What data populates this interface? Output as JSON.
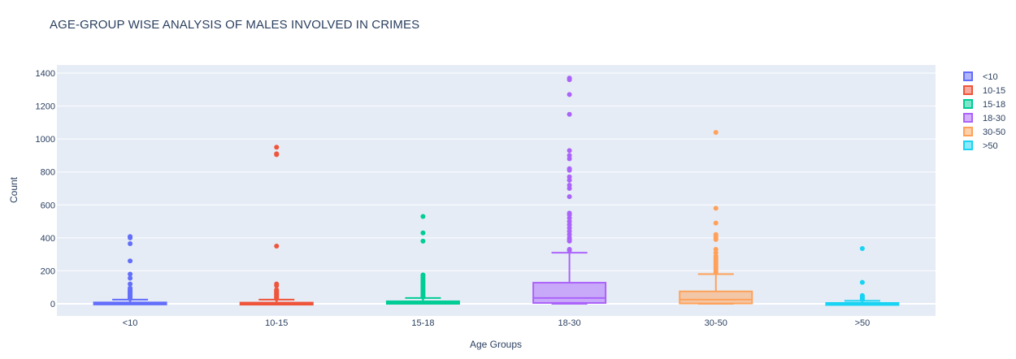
{
  "chart_data": {
    "type": "box",
    "title": "AGE-GROUP WISE ANALYSIS OF MALES INVOLVED IN CRIMES",
    "xlabel": "Age Groups",
    "ylabel": "Count",
    "ylim": [
      -70,
      1470
    ],
    "yticks": [
      0,
      200,
      400,
      600,
      800,
      1000,
      1200,
      1400
    ],
    "grid": true,
    "legend_position": "right",
    "series": [
      {
        "name": "<10",
        "color": "#636efa",
        "q1": 0,
        "median": 3,
        "q3": 8,
        "whisker_low": 0,
        "whisker_high": 25,
        "outliers": [
          30,
          35,
          40,
          45,
          50,
          55,
          60,
          65,
          70,
          75,
          80,
          85,
          95,
          120,
          155,
          180,
          260,
          365,
          400,
          408
        ]
      },
      {
        "name": "10-15",
        "color": "#ef553b",
        "q1": 0,
        "median": 2,
        "q3": 7,
        "whisker_low": 0,
        "whisker_high": 25,
        "outliers": [
          30,
          35,
          40,
          45,
          50,
          55,
          60,
          65,
          70,
          75,
          80,
          85,
          110,
          120,
          350,
          905,
          910,
          950
        ]
      },
      {
        "name": "15-18",
        "color": "#00cc96",
        "q1": 0,
        "median": 5,
        "q3": 15,
        "whisker_low": 0,
        "whisker_high": 35,
        "outliers": [
          40,
          45,
          50,
          60,
          70,
          80,
          90,
          100,
          110,
          120,
          130,
          140,
          150,
          160,
          170,
          175,
          380,
          430,
          530
        ]
      },
      {
        "name": "18-30",
        "color": "#ab63fa",
        "q1": 5,
        "median": 35,
        "q3": 128,
        "whisker_low": 0,
        "whisker_high": 310,
        "outliers": [
          325,
          330,
          380,
          390,
          400,
          420,
          440,
          460,
          480,
          500,
          520,
          540,
          550,
          650,
          700,
          720,
          750,
          770,
          810,
          820,
          880,
          900,
          930,
          1150,
          1270,
          1360,
          1370
        ]
      },
      {
        "name": "30-50",
        "color": "#ffa15a",
        "q1": 2,
        "median": 25,
        "q3": 75,
        "whisker_low": 0,
        "whisker_high": 180,
        "outliers": [
          190,
          200,
          210,
          220,
          230,
          240,
          250,
          260,
          270,
          280,
          290,
          310,
          330,
          390,
          400,
          410,
          420,
          490,
          580,
          1040
        ]
      },
      {
        "name": ">50",
        "color": "#19d3f3",
        "q1": 0,
        "median": 2,
        "q3": 5,
        "whisker_low": 0,
        "whisker_high": 18,
        "outliers": [
          25,
          30,
          35,
          40,
          45,
          50,
          130,
          335
        ]
      }
    ]
  }
}
